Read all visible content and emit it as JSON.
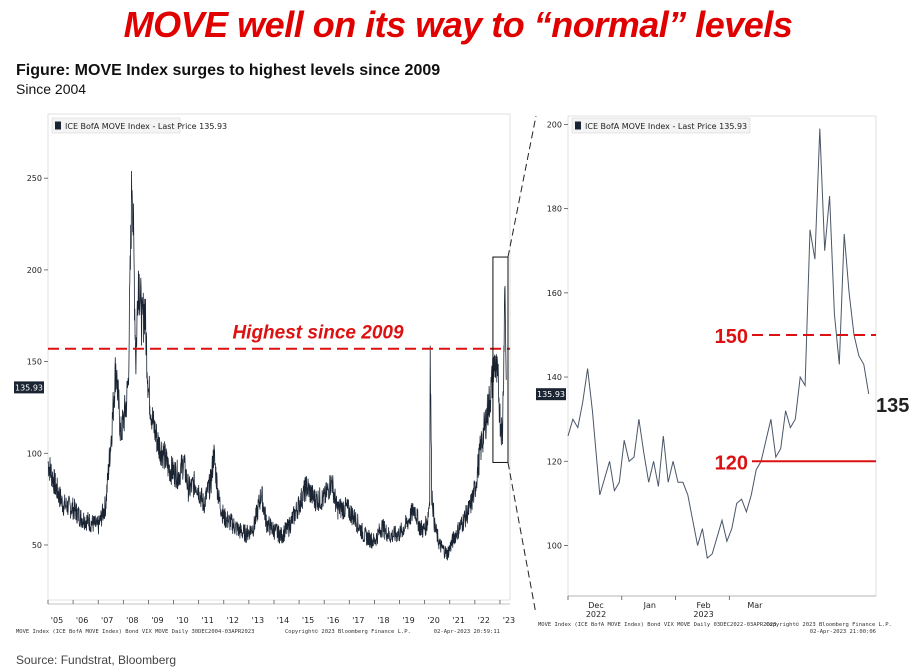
{
  "headline": "MOVE well on its way to “normal” levels",
  "figure_title": "Figure: MOVE Index surges to highest levels since 2009",
  "figure_subtitle": "Since 2004",
  "source": "Source: Fundstrat, Bloomberg",
  "colors": {
    "headline": "#e00000",
    "series": "#1a2433",
    "annotation": "#dd1111",
    "badge": "#1a2433"
  },
  "chart_data": [
    {
      "type": "line",
      "legend": "ICE BofA MOVE Index - Last Price 135.93",
      "last_price_badge": "135.93",
      "x_ticks": [
        "'05",
        "'06",
        "'07",
        "'08",
        "'09",
        "'10",
        "'11",
        "'12",
        "'13",
        "'14",
        "'15",
        "'16",
        "'17",
        "'18",
        "'19",
        "'20",
        "'21",
        "'22",
        "'23"
      ],
      "y_ticks": [
        50,
        100,
        150,
        200,
        250
      ],
      "ylim": [
        20,
        285
      ],
      "xlim": [
        2005.0,
        2023.4
      ],
      "annotation": {
        "text": "Highest since 2009",
        "level": 157
      },
      "footer_left": "MOVE Index (ICE BofA MOVE Index) Bond VIX MOVE  Daily 30DEC2004-03APR2023",
      "footer_center": "Copyright© 2023 Bloomberg Finance L.P.",
      "footer_right": "02-Apr-2023 20:59:11",
      "series": [
        {
          "x": [
            2005.0,
            2005.3,
            2005.6,
            2006.0,
            2006.3,
            2006.6,
            2007.0,
            2007.3,
            2007.55,
            2007.7,
            2007.9,
            2008.1,
            2008.2,
            2008.35,
            2008.5,
            2008.6,
            2008.75,
            2008.85,
            2009.0,
            2009.2,
            2009.4,
            2009.6,
            2009.8,
            2010.0,
            2010.2,
            2010.4,
            2010.6,
            2010.9,
            2011.2,
            2011.5,
            2011.6,
            2011.8,
            2012.0,
            2012.3,
            2012.6,
            2012.9,
            2013.2,
            2013.4,
            2013.5,
            2013.7,
            2014.0,
            2014.3,
            2014.6,
            2015.0,
            2015.3,
            2015.6,
            2016.0,
            2016.3,
            2016.5,
            2016.9,
            2017.2,
            2017.6,
            2018.0,
            2018.3,
            2018.6,
            2019.0,
            2019.3,
            2019.6,
            2019.8,
            2019.95,
            2020.1,
            2020.2,
            2020.22,
            2020.28,
            2020.4,
            2020.6,
            2020.9,
            2021.2,
            2021.5,
            2021.8,
            2022.0,
            2022.2,
            2022.4,
            2022.6,
            2022.8,
            2022.95,
            2023.0,
            2023.1,
            2023.2,
            2023.25
          ],
          "y": [
            95,
            82,
            72,
            70,
            65,
            63,
            60,
            72,
            115,
            148,
            110,
            125,
            140,
            255,
            150,
            200,
            170,
            180,
            135,
            115,
            105,
            100,
            92,
            90,
            88,
            95,
            80,
            84,
            72,
            85,
            100,
            75,
            65,
            62,
            58,
            56,
            60,
            72,
            78,
            62,
            58,
            55,
            60,
            72,
            82,
            75,
            75,
            85,
            70,
            70,
            65,
            55,
            52,
            60,
            55,
            56,
            62,
            70,
            60,
            58,
            62,
            75,
            155,
            80,
            60,
            50,
            45,
            55,
            62,
            70,
            80,
            100,
            115,
            130,
            150,
            135,
            120,
            110,
            195,
            140
          ]
        }
      ]
    },
    {
      "type": "line",
      "legend": "ICE BofA MOVE Index - Last Price 135.93",
      "last_price_badge": "135.93",
      "x_tick_labels": [
        "Dec",
        "Jan",
        "Feb",
        "Mar"
      ],
      "x_year_labels": [
        "2022",
        "2023"
      ],
      "y_ticks": [
        100,
        120,
        140,
        160,
        180,
        200
      ],
      "ylim": [
        88,
        202
      ],
      "xlim": [
        0,
        126
      ],
      "annotations": [
        {
          "text": "150",
          "level": 150,
          "style": "dashed"
        },
        {
          "text": "120",
          "level": 120,
          "style": "solid"
        },
        {
          "text": "135",
          "level": 135,
          "style": "label"
        }
      ],
      "footer_left": "MOVE Index (ICE BofA MOVE Index) Bond VIX MOVE  Daily 03DEC2022-03APR2023",
      "footer_center": "Copyright© 2023 Bloomberg Finance L.P.",
      "footer_right": "02-Apr-2023 21:00:06",
      "series": [
        {
          "x": [
            0,
            2,
            4,
            6,
            8,
            10,
            13,
            15,
            17,
            19,
            21,
            23,
            25,
            27,
            29,
            31,
            33,
            35,
            37,
            39,
            41,
            43,
            45,
            47,
            49,
            51,
            53,
            55,
            57,
            59,
            61,
            63,
            65,
            67,
            69,
            71,
            73,
            75,
            77,
            79,
            81,
            83,
            85,
            87,
            89,
            91,
            93,
            95,
            97,
            99,
            101,
            103,
            105,
            107,
            109,
            111,
            113,
            115,
            117,
            119,
            121,
            123
          ],
          "y": [
            126,
            130,
            128,
            134,
            142,
            132,
            112,
            116,
            120,
            113,
            115,
            125,
            120,
            121,
            130,
            122,
            115,
            120,
            114,
            126,
            115,
            120,
            115,
            115,
            112,
            106,
            100,
            104,
            97,
            98,
            102,
            106,
            101,
            104,
            110,
            111,
            108,
            112,
            118,
            120,
            125,
            130,
            121,
            123,
            132,
            128,
            130,
            140,
            138,
            175,
            168,
            199,
            170,
            183,
            155,
            143,
            174,
            160,
            150,
            145,
            143,
            136
          ]
        }
      ]
    }
  ]
}
